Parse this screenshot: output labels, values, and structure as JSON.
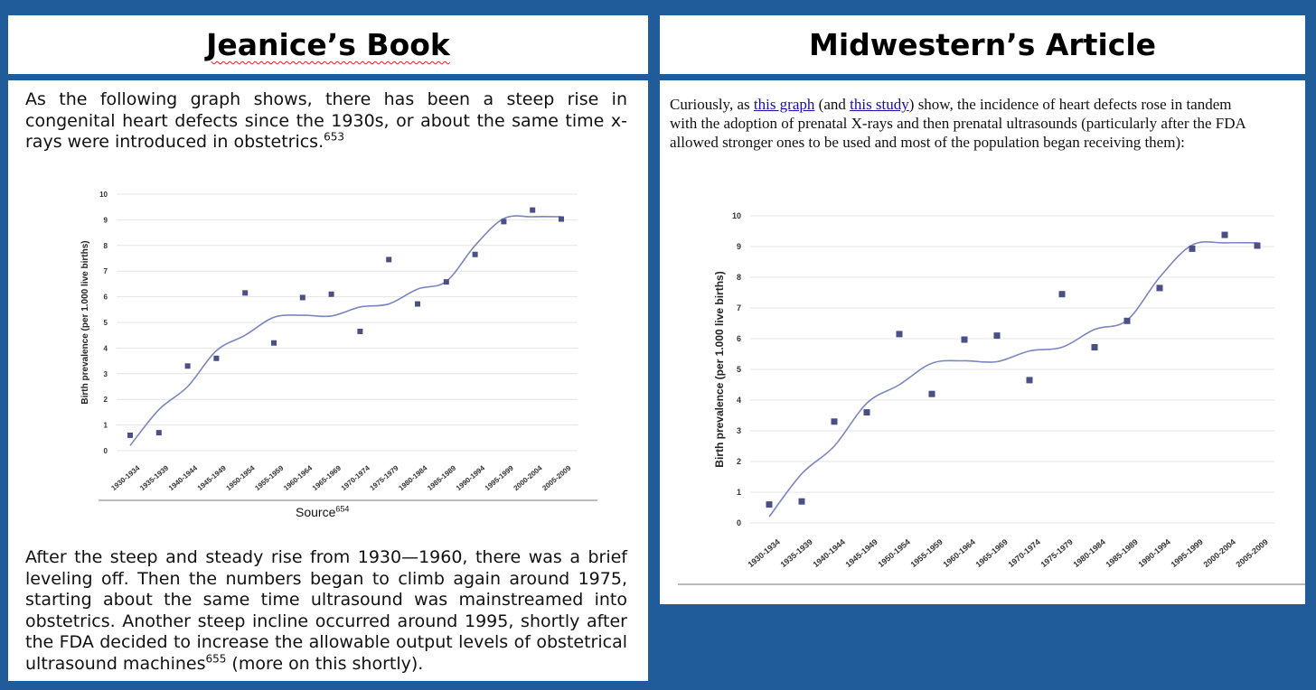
{
  "left": {
    "title": "Jeanice’s Book",
    "intro": "As the following graph shows, there has been a steep rise in congenital heart defects since the 1930s, or about the same time x-rays were introduced in obstetrics.",
    "intro_ref": "653",
    "source_label": "Source",
    "source_ref": "654",
    "outro_a": "After the steep and steady rise from 1930—1960, there was a brief leveling off.  Then the numbers began to climb again around 1975, starting about the same time ultrasound was mainstreamed into obstetrics.  Another steep incline occurred around 1995, shortly after the FDA decided to increase the allowable output levels of obstetrical ultrasound machines",
    "outro_ref": "655",
    "outro_b": " (more on this shortly)."
  },
  "right": {
    "title": "Midwestern’s Article",
    "text_a": "Curiously, as ",
    "link_graph": "this graph",
    "text_b": " (and ",
    "link_study": "this study",
    "text_c": ") show, the incidence of heart defects rose in tandem with the adoption of prenatal X-rays and then prenatal ultrasounds (particularly after the FDA allowed stronger ones to be used and most of the population began receiving them):"
  },
  "colors": {
    "background": "#1f5c99",
    "marker": "#4a4f86",
    "trend": "#7b86bf",
    "grid": "#e4e4e4"
  },
  "chart_data": [
    {
      "type": "scatter",
      "categories": [
        "1930-1934",
        "1935-1939",
        "1940-1944",
        "1945-1949",
        "1950-1954",
        "1955-1959",
        "1960-1964",
        "1965-1969",
        "1970-1974",
        "1975-1979",
        "1980-1984",
        "1985-1989",
        "1990-1994",
        "1995-1999",
        "2000-2004",
        "2005-2009"
      ],
      "values": [
        0.6,
        0.7,
        3.3,
        3.6,
        6.15,
        4.2,
        5.97,
        6.1,
        4.65,
        7.45,
        5.72,
        6.58,
        7.65,
        8.93,
        9.38,
        9.03
      ],
      "trend": [
        0.2,
        1.6,
        2.5,
        3.9,
        4.5,
        5.2,
        5.28,
        5.25,
        5.6,
        5.72,
        6.3,
        6.6,
        8.0,
        9.05,
        9.12,
        9.12
      ],
      "ylabel": "Birth prevalence (per 1.000 live births)",
      "yticks": [
        "0",
        "1",
        "2",
        "3",
        "4",
        "5",
        "6",
        "7",
        "8",
        "9",
        "10"
      ],
      "ylim": [
        0,
        10
      ],
      "grid": true,
      "legend": "none"
    },
    {
      "type": "scatter",
      "categories": [
        "1930-1934",
        "1935-1939",
        "1940-1944",
        "1945-1949",
        "1950-1954",
        "1955-1959",
        "1960-1964",
        "1965-1969",
        "1970-1974",
        "1975-1979",
        "1980-1984",
        "1985-1989",
        "1990-1994",
        "1995-1999",
        "2000-2004",
        "2005-2009"
      ],
      "values": [
        0.6,
        0.7,
        3.3,
        3.6,
        6.15,
        4.2,
        5.97,
        6.1,
        4.65,
        7.45,
        5.72,
        6.58,
        7.65,
        8.93,
        9.38,
        9.03
      ],
      "trend": [
        0.2,
        1.6,
        2.5,
        3.9,
        4.5,
        5.2,
        5.28,
        5.25,
        5.6,
        5.72,
        6.3,
        6.6,
        8.0,
        9.05,
        9.12,
        9.12
      ],
      "ylabel": "Birth prevalence (per 1.000 live births)",
      "yticks": [
        "0",
        "1",
        "2",
        "3",
        "4",
        "5",
        "6",
        "7",
        "8",
        "9",
        "10"
      ],
      "ylim": [
        0,
        10
      ],
      "grid": true,
      "legend": "none"
    }
  ]
}
